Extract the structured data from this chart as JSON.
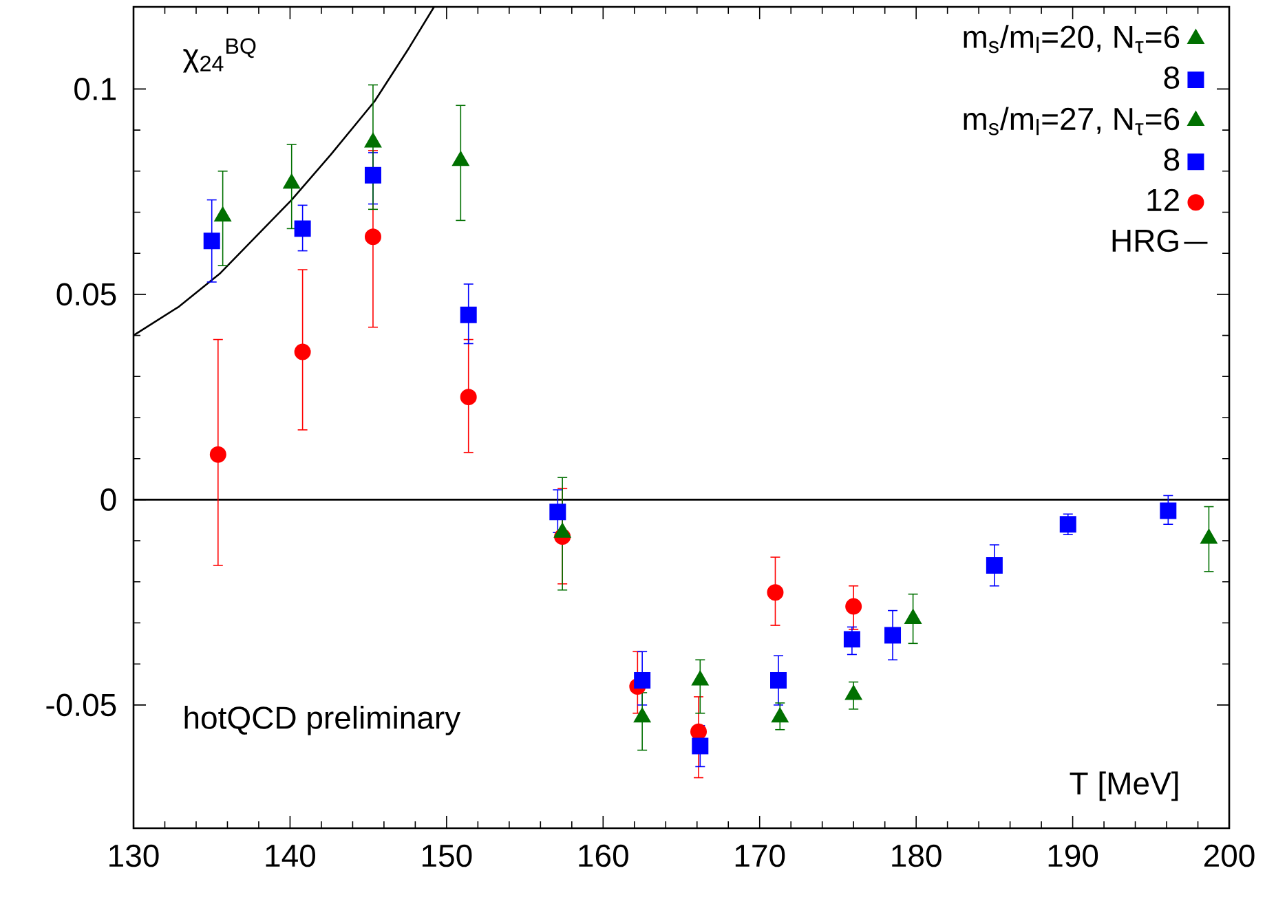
{
  "chart_data": {
    "type": "scatter",
    "xlabel": "T [MeV]",
    "ylabel": "χ$_{24}$$^{BQ}$",
    "annotations": [
      "hotQCD preliminary"
    ],
    "xlim": [
      130,
      200
    ],
    "xticks": [
      130,
      140,
      150,
      160,
      170,
      180,
      190,
      200
    ],
    "ylim": [
      -0.08,
      0.12
    ],
    "yticks": [
      -0.05,
      0,
      0.05,
      0.1
    ],
    "grid": false,
    "legend": "top right",
    "ref_lines": [
      {
        "axis": "y",
        "value": 0,
        "color": "#000000"
      }
    ],
    "series": [
      {
        "name": "m$_{s}$/m$_{l}$=20, N$_{τ}$=6",
        "marker": "triangle",
        "color": "#007000",
        "x": [
          179.8,
          198.7
        ],
        "values": [
          -0.029,
          -0.0095
        ],
        "errors": [
          [
            -0.035,
            -0.023
          ],
          [
            -0.0175,
            -0.0017
          ]
        ]
      },
      {
        "name": "8",
        "marker": "square",
        "color": "#0000ff",
        "x": [
          178.5,
          185.0,
          189.7,
          196.1
        ],
        "values": [
          -0.033,
          -0.016,
          -0.006,
          -0.0027
        ],
        "errors": [
          [
            -0.039,
            -0.027
          ],
          [
            -0.021,
            -0.011
          ],
          [
            -0.0085,
            -0.0035
          ],
          [
            -0.006,
            0.001
          ]
        ]
      },
      {
        "name": "m$_{s}$/m$_{l}$=27, N$_{τ}$=6",
        "marker": "triangle",
        "color": "#007000",
        "x": [
          135.7,
          140.1,
          145.3,
          150.9,
          157.4,
          162.5,
          166.2,
          171.3,
          176.0
        ],
        "values": [
          0.069,
          0.077,
          0.087,
          0.0825,
          -0.008,
          -0.053,
          -0.044,
          -0.053,
          -0.0475
        ],
        "errors": [
          [
            0.057,
            0.08
          ],
          [
            0.066,
            0.0865
          ],
          [
            0.0707,
            0.101
          ],
          [
            0.068,
            0.096
          ],
          [
            -0.022,
            0.0054
          ],
          [
            -0.061,
            -0.047
          ],
          [
            -0.052,
            -0.039
          ],
          [
            -0.056,
            -0.0495
          ],
          [
            -0.051,
            -0.0444
          ]
        ]
      },
      {
        "name": "8",
        "marker": "square",
        "color": "#0000ff",
        "x": [
          135.0,
          140.8,
          145.3,
          151.4,
          157.1,
          162.5,
          166.2,
          171.2,
          175.9
        ],
        "values": [
          0.063,
          0.066,
          0.079,
          0.045,
          -0.003,
          -0.044,
          -0.06,
          -0.044,
          -0.034
        ],
        "errors": [
          [
            0.053,
            0.073
          ],
          [
            0.0606,
            0.0717
          ],
          [
            0.072,
            0.0845
          ],
          [
            0.038,
            0.0525
          ],
          [
            -0.008,
            0.0024
          ],
          [
            -0.05,
            -0.037
          ],
          [
            -0.065,
            -0.055
          ],
          [
            -0.05,
            -0.038
          ],
          [
            -0.0377,
            -0.031
          ]
        ]
      },
      {
        "name": "12",
        "marker": "circle",
        "color": "#ff0000",
        "x": [
          135.4,
          140.8,
          145.3,
          151.4,
          157.4,
          162.2,
          166.1,
          171.0,
          176.0
        ],
        "values": [
          0.011,
          0.036,
          0.064,
          0.025,
          -0.009,
          -0.0455,
          -0.0565,
          -0.0226,
          -0.026
        ],
        "errors": [
          [
            -0.016,
            0.039
          ],
          [
            0.017,
            0.056
          ],
          [
            0.042,
            0.085
          ],
          [
            0.0115,
            0.039
          ],
          [
            -0.0205,
            0.0027
          ],
          [
            -0.052,
            -0.037
          ],
          [
            -0.0677,
            -0.048
          ],
          [
            -0.0306,
            -0.014
          ],
          [
            -0.0316,
            -0.021
          ]
        ]
      },
      {
        "name": "HRG",
        "type": "line",
        "marker": "none",
        "color": "#000000",
        "x": [
          130.0,
          132.9,
          135.5,
          140.1,
          142.6,
          145.4,
          147.6,
          149.2
        ],
        "values": [
          0.04,
          0.047,
          0.055,
          0.073,
          0.084,
          0.097,
          0.11,
          0.12
        ]
      }
    ]
  }
}
